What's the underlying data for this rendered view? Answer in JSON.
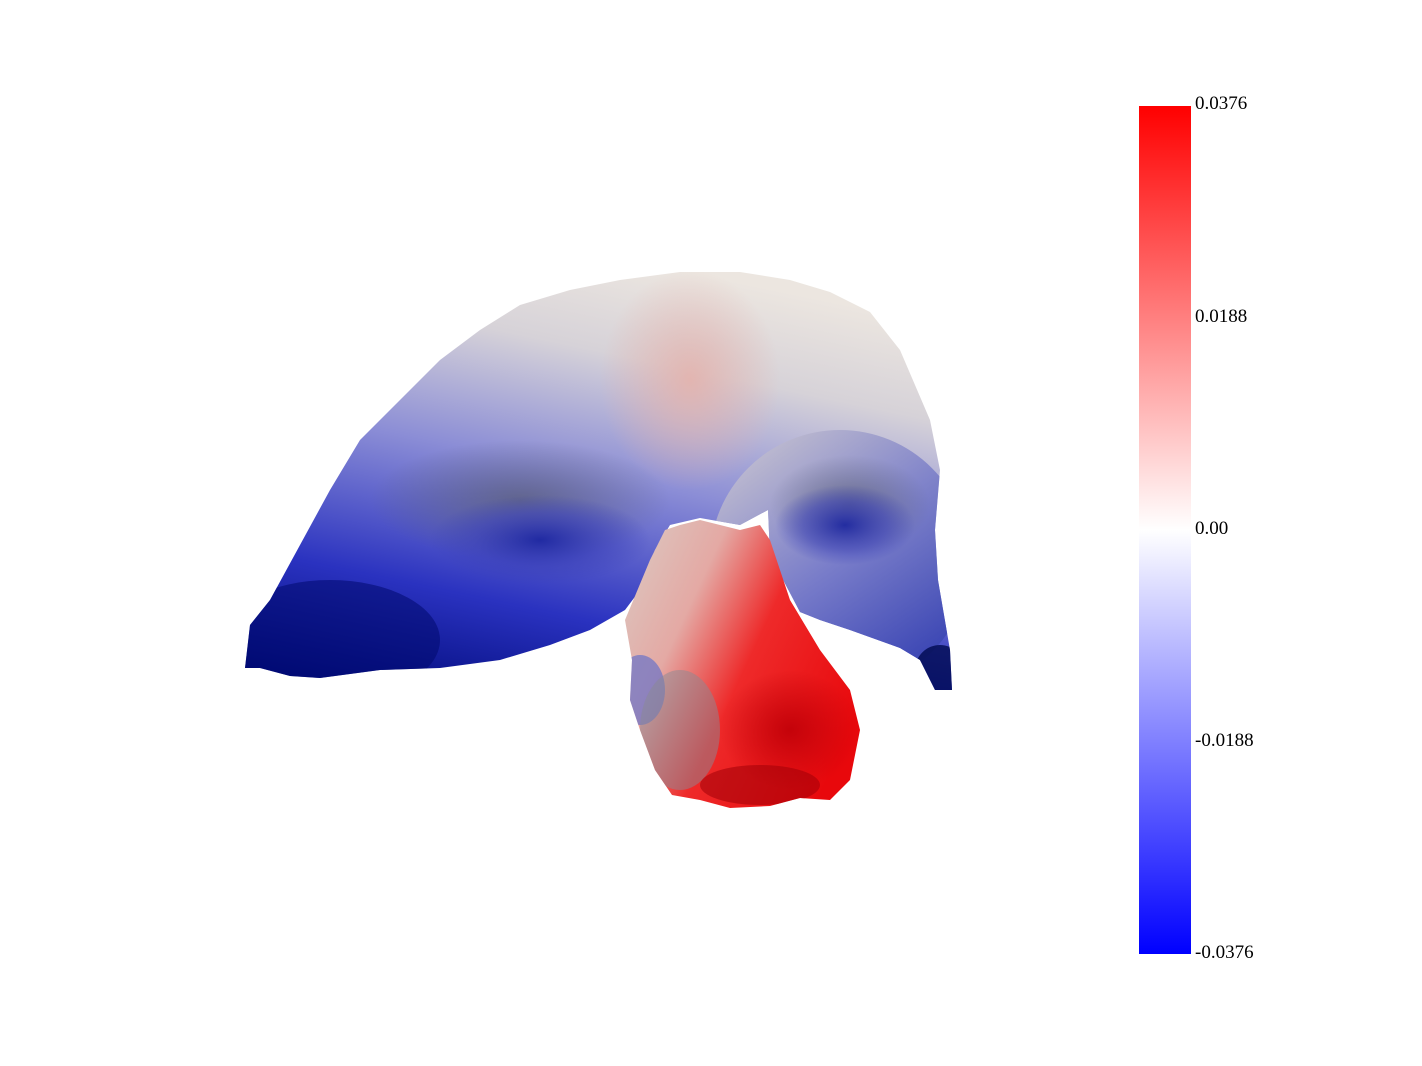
{
  "colorbar": {
    "colors": {
      "max": "#ff0000",
      "mid": "#ffffff",
      "min": "#0000ff"
    },
    "ticks": [
      "0.0376",
      "0.0188",
      "0.00",
      "-0.0188",
      "-0.0376"
    ],
    "range": [
      -0.0376,
      0.0376
    ]
  },
  "surface": {
    "description_colors": {
      "deep_negative": "#000a6e",
      "negative": "#3a44c6",
      "neutral": "#d8d2cc",
      "positive": "#e0a09c",
      "strong_positive": "#f40c10"
    }
  }
}
